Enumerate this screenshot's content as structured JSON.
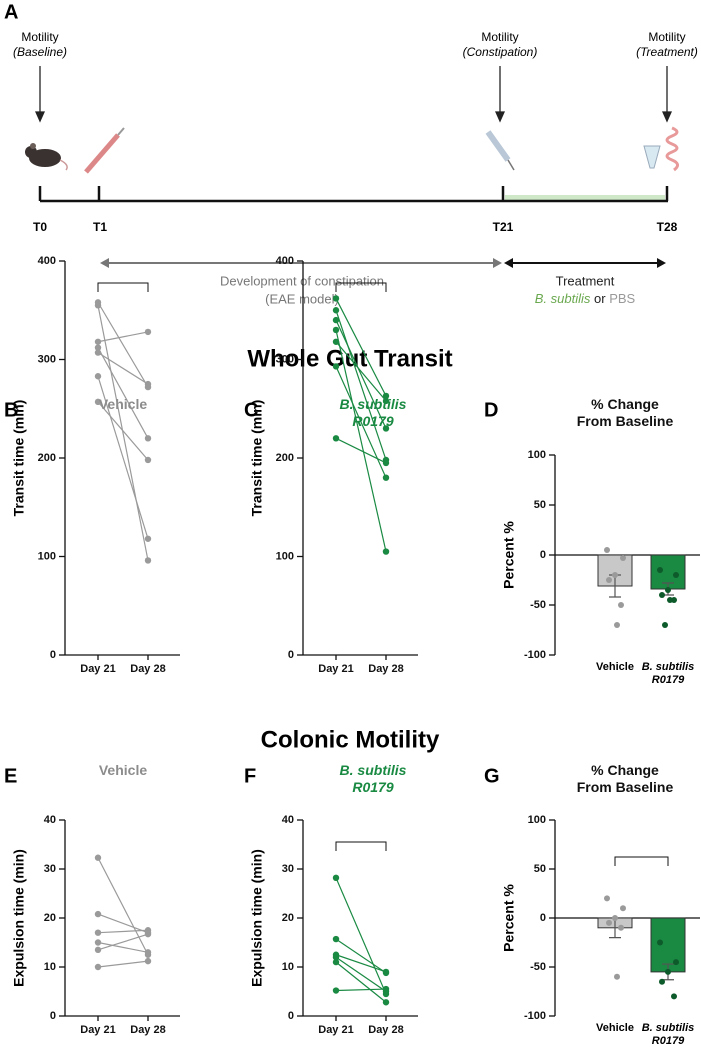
{
  "timeline": {
    "panel_label": "A",
    "events": [
      {
        "heading": "Motility",
        "detail": "(Baseline)"
      },
      {
        "heading": "Motility",
        "detail": "(Constipation)"
      },
      {
        "heading": "Motility",
        "detail": "(Treatment)"
      }
    ],
    "time_points": [
      "T0",
      "T1",
      "T21",
      "T28"
    ],
    "phase1": {
      "line1": "Development of constipation",
      "line2": "(EAE model)"
    },
    "phase2": {
      "line1": "Treatment",
      "agent1": "B. subtilis",
      "joiner": "or",
      "agent2": "PBS"
    }
  },
  "section_titles": [
    "Whole Gut Transit",
    "Colonic Motility"
  ],
  "chart_data": [
    {
      "type": "paired",
      "label": "B",
      "title": "Vehicle",
      "title_color": "#8c8c8c",
      "ylabel": "Transit time (min)",
      "categories": [
        "Day 21",
        "Day 28"
      ],
      "ylim": [
        0,
        400
      ],
      "yticks": [
        0,
        100,
        200,
        300,
        400
      ],
      "color": "#9a9a9a",
      "bracket": true,
      "series": [
        {
          "values": [
            358,
            272
          ]
        },
        {
          "values": [
            355,
            96
          ]
        },
        {
          "values": [
            318,
            328
          ]
        },
        {
          "values": [
            312,
            220
          ]
        },
        {
          "values": [
            307,
            275
          ]
        },
        {
          "values": [
            283,
            118
          ]
        },
        {
          "values": [
            257,
            198
          ]
        }
      ]
    },
    {
      "type": "paired",
      "label": "C",
      "title": "B. subtilis R0179",
      "title_color": "#1a8a43",
      "ylabel": "Transit time (min)",
      "categories": [
        "Day 21",
        "Day 28"
      ],
      "ylim": [
        0,
        400
      ],
      "yticks": [
        0,
        100,
        200,
        300,
        400
      ],
      "color": "#1a8a43",
      "bracket": true,
      "series": [
        {
          "values": [
            362,
            263
          ]
        },
        {
          "values": [
            350,
            198
          ]
        },
        {
          "values": [
            340,
            230
          ]
        },
        {
          "values": [
            330,
            105
          ]
        },
        {
          "values": [
            318,
            258
          ]
        },
        {
          "values": [
            293,
            180
          ]
        },
        {
          "values": [
            220,
            195
          ]
        }
      ]
    },
    {
      "type": "bar",
      "label": "D",
      "title": "% Change From Baseline",
      "title_color": "#111111",
      "ylabel": "Percent %",
      "categories": [
        "Vehicle",
        "B. subtilis R0179"
      ],
      "ylim": [
        -100,
        100
      ],
      "yticks": [
        -100,
        -50,
        0,
        50,
        100
      ],
      "bracket": false,
      "values": [
        -31,
        -34
      ],
      "errors": [
        11,
        6
      ],
      "colors": [
        "#c8c8c8",
        "#1a8a43"
      ],
      "point_colors": [
        "#9a9a9a",
        "#0d5a2a"
      ],
      "points": [
        [
          5,
          -3,
          -20,
          -25,
          -50,
          -70
        ],
        [
          -15,
          -20,
          -35,
          -40,
          -45,
          -45,
          -70
        ]
      ]
    },
    {
      "type": "paired",
      "label": "E",
      "title": "Vehicle",
      "title_color": "#8c8c8c",
      "ylabel": "Expulsion time (min)",
      "categories": [
        "Day 21",
        "Day 28"
      ],
      "ylim": [
        0,
        40
      ],
      "yticks": [
        0,
        10,
        20,
        30,
        40
      ],
      "color": "#9a9a9a",
      "bracket": false,
      "series": [
        {
          "values": [
            32.3,
            12.5
          ]
        },
        {
          "values": [
            20.8,
            17
          ]
        },
        {
          "values": [
            17,
            17.5
          ]
        },
        {
          "values": [
            15,
            13
          ]
        },
        {
          "values": [
            13.5,
            16.7
          ]
        },
        {
          "values": [
            10,
            11.2
          ]
        }
      ]
    },
    {
      "type": "paired",
      "label": "F",
      "title": "B. subtilis R0179",
      "title_color": "#1a8a43",
      "ylabel": "Expulsion time (min)",
      "categories": [
        "Day 21",
        "Day 28"
      ],
      "ylim": [
        0,
        40
      ],
      "yticks": [
        0,
        10,
        20,
        30,
        40
      ],
      "color": "#1a8a43",
      "bracket": true,
      "series": [
        {
          "values": [
            28.2,
            4.5
          ]
        },
        {
          "values": [
            15.7,
            8.8
          ]
        },
        {
          "values": [
            12.5,
            9
          ]
        },
        {
          "values": [
            12,
            5
          ]
        },
        {
          "values": [
            11,
            2.8
          ]
        },
        {
          "values": [
            5.2,
            5.5
          ]
        }
      ]
    },
    {
      "type": "bar",
      "label": "G",
      "title": "% Change From Baseline",
      "title_color": "#111111",
      "ylabel": "Percent %",
      "categories": [
        "Vehicle",
        "B. subtilis R0179"
      ],
      "ylim": [
        -100,
        100
      ],
      "yticks": [
        -100,
        -50,
        0,
        50,
        100
      ],
      "bracket": true,
      "values": [
        -10,
        -55
      ],
      "errors": [
        10,
        8
      ],
      "colors": [
        "#c8c8c8",
        "#1a8a43"
      ],
      "point_colors": [
        "#9a9a9a",
        "#0d5a2a"
      ],
      "points": [
        [
          20,
          10,
          0,
          -5,
          -10,
          -60
        ],
        [
          -25,
          -45,
          -55,
          -65,
          -80
        ]
      ]
    }
  ]
}
